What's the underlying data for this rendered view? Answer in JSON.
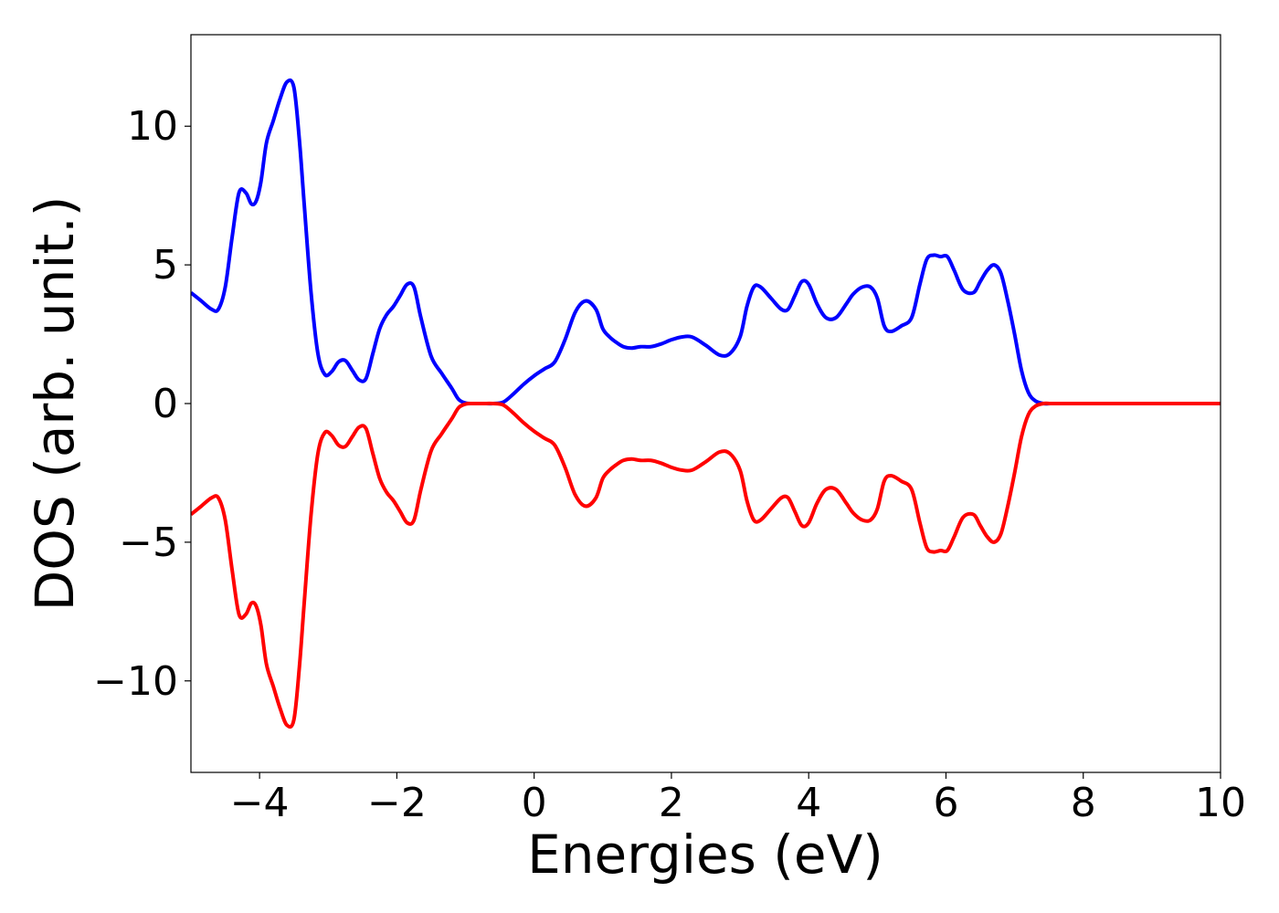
{
  "chart_data": {
    "type": "line",
    "xlabel": "Energies (eV)",
    "ylabel": "DOS (arb. unit.)",
    "xlim": [
      -5,
      10
    ],
    "ylim": [
      -13.3,
      13.3
    ],
    "x_ticks": [
      -4,
      -2,
      0,
      2,
      4,
      6,
      8,
      10
    ],
    "x_tick_labels": [
      "−4",
      "−2",
      "0",
      "2",
      "4",
      "6",
      "8",
      "10"
    ],
    "y_ticks": [
      10,
      5,
      0,
      -5,
      -10
    ],
    "y_tick_labels": [
      "10",
      "5",
      "0",
      "−5",
      "−10"
    ],
    "grid": false,
    "series": [
      {
        "color": "#0000ff",
        "x": [
          -5.0,
          -4.85,
          -4.7,
          -4.6,
          -4.5,
          -4.4,
          -4.3,
          -4.2,
          -4.12,
          -4.05,
          -3.98,
          -3.9,
          -3.8,
          -3.7,
          -3.6,
          -3.5,
          -3.42,
          -3.35,
          -3.25,
          -3.15,
          -3.05,
          -2.95,
          -2.85,
          -2.75,
          -2.65,
          -2.55,
          -2.45,
          -2.35,
          -2.25,
          -2.15,
          -2.05,
          -1.95,
          -1.85,
          -1.75,
          -1.65,
          -1.5,
          -1.35,
          -1.2,
          -1.1,
          -1.0,
          -0.9,
          -0.75,
          -0.6,
          -0.45,
          -0.3,
          -0.15,
          0.0,
          0.15,
          0.3,
          0.45,
          0.6,
          0.75,
          0.9,
          1.0,
          1.1,
          1.2,
          1.3,
          1.42,
          1.55,
          1.7,
          1.85,
          2.0,
          2.15,
          2.3,
          2.5,
          2.7,
          2.85,
          3.0,
          3.1,
          3.2,
          3.3,
          3.45,
          3.6,
          3.7,
          3.8,
          3.9,
          4.0,
          4.12,
          4.25,
          4.4,
          4.55,
          4.65,
          4.78,
          4.9,
          5.0,
          5.1,
          5.2,
          5.35,
          5.5,
          5.62,
          5.72,
          5.82,
          5.92,
          6.02,
          6.12,
          6.25,
          6.4,
          6.5,
          6.6,
          6.7,
          6.8,
          6.9,
          7.0,
          7.1,
          7.2,
          7.3,
          7.42,
          7.52,
          7.62,
          7.72,
          7.85,
          7.95,
          8.05,
          8.15,
          8.3,
          8.45,
          8.6,
          8.75,
          8.9,
          9.0,
          9.5,
          10.0
        ],
        "y": [
          4.0,
          3.7,
          3.4,
          3.4,
          4.2,
          6.0,
          7.6,
          7.6,
          7.2,
          7.3,
          8.0,
          9.4,
          10.2,
          11.0,
          11.6,
          11.4,
          9.5,
          7.2,
          4.0,
          1.8,
          1.05,
          1.15,
          1.5,
          1.55,
          1.2,
          0.85,
          0.9,
          1.8,
          2.7,
          3.2,
          3.5,
          3.9,
          4.3,
          4.2,
          3.1,
          1.7,
          1.1,
          0.55,
          0.15,
          0.02,
          0.0,
          0.0,
          0.0,
          0.05,
          0.35,
          0.7,
          1.0,
          1.25,
          1.5,
          2.3,
          3.3,
          3.7,
          3.4,
          2.7,
          2.4,
          2.2,
          2.05,
          2.0,
          2.05,
          2.05,
          2.15,
          2.3,
          2.4,
          2.4,
          2.1,
          1.75,
          1.8,
          2.4,
          3.5,
          4.2,
          4.2,
          3.8,
          3.4,
          3.4,
          3.9,
          4.4,
          4.3,
          3.6,
          3.1,
          3.1,
          3.6,
          3.95,
          4.2,
          4.2,
          3.8,
          2.8,
          2.6,
          2.8,
          3.1,
          4.3,
          5.2,
          5.35,
          5.3,
          5.3,
          4.8,
          4.1,
          4.0,
          4.4,
          4.8,
          5.0,
          4.7,
          3.7,
          2.5,
          1.2,
          0.4,
          0.1,
          0.0,
          0.0,
          0.0,
          0.0,
          0.0,
          0.0,
          0.0,
          0.0,
          0.0,
          0.0,
          0.0,
          0.0,
          0.0,
          0.0,
          0.0,
          0.0
        ]
      },
      {
        "color": "#ff0000",
        "x": [
          -5.0,
          -4.85,
          -4.7,
          -4.6,
          -4.5,
          -4.4,
          -4.3,
          -4.2,
          -4.12,
          -4.05,
          -3.98,
          -3.9,
          -3.8,
          -3.7,
          -3.6,
          -3.5,
          -3.42,
          -3.35,
          -3.25,
          -3.15,
          -3.05,
          -2.95,
          -2.85,
          -2.75,
          -2.65,
          -2.55,
          -2.45,
          -2.35,
          -2.25,
          -2.15,
          -2.05,
          -1.95,
          -1.85,
          -1.75,
          -1.65,
          -1.5,
          -1.35,
          -1.2,
          -1.1,
          -1.0,
          -0.9,
          -0.75,
          -0.6,
          -0.45,
          -0.3,
          -0.15,
          0.0,
          0.15,
          0.3,
          0.45,
          0.6,
          0.75,
          0.9,
          1.0,
          1.1,
          1.2,
          1.3,
          1.42,
          1.55,
          1.7,
          1.85,
          2.0,
          2.15,
          2.3,
          2.5,
          2.7,
          2.85,
          3.0,
          3.1,
          3.2,
          3.3,
          3.45,
          3.6,
          3.7,
          3.8,
          3.9,
          4.0,
          4.12,
          4.25,
          4.4,
          4.55,
          4.65,
          4.78,
          4.9,
          5.0,
          5.1,
          5.2,
          5.35,
          5.5,
          5.62,
          5.72,
          5.82,
          5.92,
          6.02,
          6.12,
          6.25,
          6.4,
          6.5,
          6.6,
          6.7,
          6.8,
          6.9,
          7.0,
          7.1,
          7.2,
          7.3,
          7.42,
          7.52,
          7.62,
          7.72,
          7.85,
          7.95,
          8.05,
          8.15,
          8.3,
          8.45,
          8.6,
          8.75,
          8.9,
          9.0,
          9.5,
          10.0
        ],
        "y": [
          -4.0,
          -3.7,
          -3.4,
          -3.4,
          -4.2,
          -6.0,
          -7.6,
          -7.6,
          -7.2,
          -7.3,
          -8.0,
          -9.4,
          -10.2,
          -11.0,
          -11.6,
          -11.4,
          -9.5,
          -7.2,
          -4.0,
          -1.8,
          -1.05,
          -1.15,
          -1.5,
          -1.55,
          -1.2,
          -0.85,
          -0.9,
          -1.8,
          -2.7,
          -3.2,
          -3.5,
          -3.9,
          -4.3,
          -4.2,
          -3.1,
          -1.7,
          -1.1,
          -0.55,
          -0.15,
          -0.02,
          0.0,
          0.0,
          0.0,
          -0.05,
          -0.35,
          -0.7,
          -1.0,
          -1.25,
          -1.5,
          -2.3,
          -3.3,
          -3.7,
          -3.4,
          -2.7,
          -2.4,
          -2.2,
          -2.05,
          -2.0,
          -2.05,
          -2.05,
          -2.15,
          -2.3,
          -2.4,
          -2.4,
          -2.1,
          -1.75,
          -1.8,
          -2.4,
          -3.5,
          -4.2,
          -4.2,
          -3.8,
          -3.4,
          -3.4,
          -3.9,
          -4.4,
          -4.3,
          -3.6,
          -3.1,
          -3.1,
          -3.6,
          -3.95,
          -4.2,
          -4.2,
          -3.8,
          -2.8,
          -2.6,
          -2.8,
          -3.1,
          -4.3,
          -5.2,
          -5.35,
          -5.3,
          -5.3,
          -4.8,
          -4.1,
          -4.0,
          -4.4,
          -4.8,
          -5.0,
          -4.7,
          -3.7,
          -2.5,
          -1.2,
          -0.4,
          -0.1,
          0.0,
          0.0,
          0.0,
          0.0,
          0.0,
          0.0,
          0.0,
          0.0,
          0.0,
          0.0,
          0.0,
          0.0,
          0.0,
          0.0,
          0.0,
          0.0
        ]
      }
    ]
  }
}
